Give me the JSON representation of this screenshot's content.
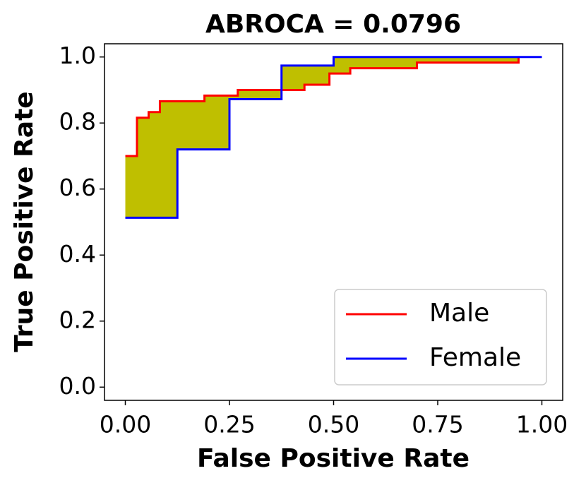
{
  "chart_data": {
    "type": "line",
    "title": "ABROCA = 0.0796",
    "x_label": "False Positive Rate",
    "y_label": "True Positive Rate",
    "xlim": [
      -0.05,
      1.05
    ],
    "ylim": [
      -0.04,
      1.04
    ],
    "xticks": [
      {
        "value": 0,
        "label": "0.00"
      },
      {
        "value": 0.25,
        "label": "0.25"
      },
      {
        "value": 0.5,
        "label": "0.50"
      },
      {
        "value": 0.75,
        "label": "0.75"
      },
      {
        "value": 1,
        "label": "1.00"
      }
    ],
    "yticks": [
      {
        "value": 0,
        "label": "0.0"
      },
      0.2,
      0.4,
      0.6,
      0.8,
      {
        "value": 1,
        "label": "1.0"
      }
    ],
    "fill_color": "#bfbf00",
    "legend": "lower right",
    "series": [
      {
        "name": "Male",
        "color": "#ff0000",
        "x": [
          0,
          0.028,
          0.028,
          0.056,
          0.056,
          0.083,
          0.083,
          0.19,
          0.19,
          0.27,
          0.27,
          0.43,
          0.43,
          0.49,
          0.49,
          0.54,
          0.54,
          0.7,
          0.7,
          0.944,
          0.944
        ],
        "values": [
          0.7,
          0.7,
          0.816,
          0.816,
          0.833,
          0.833,
          0.866,
          0.866,
          0.883,
          0.883,
          0.9,
          0.9,
          0.916,
          0.916,
          0.95,
          0.95,
          0.966,
          0.966,
          0.983,
          0.983,
          1.0
        ]
      },
      {
        "name": "Female",
        "color": "#0000ff",
        "x": [
          0,
          0.125,
          0.125,
          0.25,
          0.25,
          0.375,
          0.375,
          0.5,
          0.5,
          1.0
        ],
        "values": [
          0.513,
          0.513,
          0.72,
          0.72,
          0.872,
          0.872,
          0.974,
          0.974,
          1.0,
          1.0
        ]
      }
    ]
  }
}
